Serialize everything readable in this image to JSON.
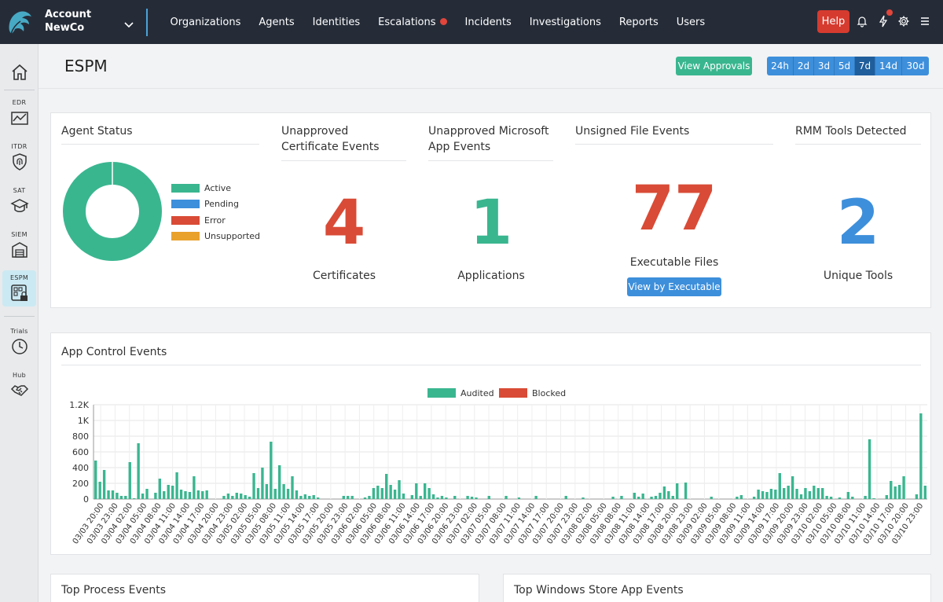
{
  "account": {
    "label": "Account",
    "name": "NewCo"
  },
  "nav": [
    {
      "label": "Organizations"
    },
    {
      "label": "Agents"
    },
    {
      "label": "Identities"
    },
    {
      "label": "Escalations",
      "alert": true
    },
    {
      "label": "Incidents"
    },
    {
      "label": "Investigations"
    },
    {
      "label": "Reports"
    },
    {
      "label": "Users"
    }
  ],
  "topbar": {
    "help_label": "Help",
    "icons": [
      "bell-icon",
      "bolt-icon",
      "gear-icon",
      "menu-icon"
    ]
  },
  "sidebar": [
    {
      "label": "",
      "icon": "home-icon"
    },
    {
      "label": "EDR",
      "icon": "chart-line-icon"
    },
    {
      "label": "ITDR",
      "icon": "fingerprint-shield-icon"
    },
    {
      "label": "SAT",
      "icon": "graduation-cap-icon"
    },
    {
      "label": "SIEM",
      "icon": "warehouse-icon"
    },
    {
      "label": "ESPM",
      "icon": "grid-lock-icon",
      "active": true
    },
    {
      "label": "Trials",
      "icon": "clock-icon"
    },
    {
      "label": "Hub",
      "icon": "handshake-icon"
    }
  ],
  "page": {
    "title": "ESPM",
    "approvals_label": "View Approvals",
    "ranges": [
      "24h",
      "2d",
      "3d",
      "5d",
      "7d",
      "14d",
      "30d"
    ],
    "active_range": "7d"
  },
  "agent_status": {
    "title": "Agent Status",
    "legend": [
      {
        "label": "Active",
        "color": "#3ab68f"
      },
      {
        "label": "Pending",
        "color": "#3d8fdb"
      },
      {
        "label": "Error",
        "color": "#d94b36"
      },
      {
        "label": "Unsupported",
        "color": "#e9a12c"
      }
    ],
    "chart_data": {
      "type": "pie",
      "categories": [
        "Active",
        "Pending",
        "Error",
        "Unsupported"
      ],
      "values": [
        100,
        0,
        0,
        0
      ]
    }
  },
  "stats": [
    {
      "title": "Unapproved Certificate Events",
      "value": "4",
      "label": "Certificates",
      "color": "#d94b36"
    },
    {
      "title": "Unapproved Microsoft App Events",
      "value": "1",
      "label": "Applications",
      "color": "#3ab68f"
    },
    {
      "title": "Unsigned File Events",
      "value": "77",
      "label": "Executable Files",
      "color": "#d94b36",
      "button": "View by Executable"
    },
    {
      "title": "RMM Tools Detected",
      "value": "2",
      "label": "Unique Tools",
      "color": "#3d8fdb"
    }
  ],
  "app_control": {
    "title": "App Control Events",
    "chart_data": {
      "type": "bar",
      "series": [
        {
          "name": "Audited",
          "color": "#3ab68f",
          "values": [
            490,
            220,
            370,
            110,
            110,
            80,
            40,
            40,
            470,
            10,
            710,
            70,
            130,
            0,
            80,
            260,
            100,
            180,
            170,
            340,
            120,
            100,
            90,
            290,
            110,
            100,
            110,
            0,
            0,
            0,
            40,
            70,
            40,
            80,
            70,
            50,
            30,
            330,
            140,
            400,
            190,
            730,
            130,
            430,
            190,
            130,
            290,
            110,
            40,
            60,
            40,
            50,
            20,
            0,
            0,
            0,
            0,
            0,
            40,
            40,
            40,
            0,
            0,
            20,
            40,
            140,
            170,
            140,
            320,
            180,
            120,
            240,
            70,
            0,
            50,
            200,
            40,
            200,
            140,
            60,
            20,
            40,
            20,
            0,
            40,
            0,
            0,
            40,
            30,
            20,
            0,
            0,
            40,
            0,
            0,
            0,
            40,
            0,
            0,
            20,
            0,
            0,
            0,
            40,
            0,
            0,
            0,
            0,
            0,
            0,
            40,
            0,
            0,
            0,
            20,
            0,
            0,
            0,
            0,
            0,
            0,
            30,
            0,
            40,
            0,
            0,
            80,
            30,
            70,
            0,
            30,
            40,
            80,
            160,
            100,
            40,
            200,
            0,
            210,
            0,
            0,
            0,
            0,
            0,
            30,
            0,
            0,
            0,
            0,
            0,
            30,
            50,
            0,
            0,
            30,
            120,
            100,
            90,
            130,
            120,
            330,
            140,
            170,
            290,
            130,
            60,
            140,
            100,
            170,
            140,
            140,
            40,
            30,
            0,
            20,
            0,
            90,
            30,
            0,
            0,
            40,
            760,
            10,
            0,
            0,
            50,
            230,
            160,
            180,
            290,
            0,
            0,
            60,
            1090,
            170
          ]
        },
        {
          "name": "Blocked",
          "color": "#d94b36",
          "values": []
        }
      ],
      "x_tick_labels": [
        "03/03 20:00",
        "03/03 23:00",
        "03/04 02:00",
        "03/04 05:00",
        "03/04 08:00",
        "03/04 11:00",
        "03/04 14:00",
        "03/04 17:00",
        "03/04 20:00",
        "03/04 23:00",
        "03/05 02:00",
        "03/05 05:00",
        "03/05 08:00",
        "03/05 11:00",
        "03/05 14:00",
        "03/05 17:00",
        "03/05 20:00",
        "03/05 23:00",
        "03/06 02:00",
        "03/06 05:00",
        "03/06 08:00",
        "03/06 11:00",
        "03/06 14:00",
        "03/06 17:00",
        "03/06 20:00",
        "03/06 23:00",
        "03/07 02:00",
        "03/07 05:00",
        "03/07 08:00",
        "03/07 11:00",
        "03/07 14:00",
        "03/07 17:00",
        "03/07 20:00",
        "03/07 23:00",
        "03/08 02:00",
        "03/08 05:00",
        "03/08 08:00",
        "03/08 11:00",
        "03/08 14:00",
        "03/08 17:00",
        "03/08 20:00",
        "03/08 23:00",
        "03/09 02:00",
        "03/09 05:00",
        "03/09 08:00",
        "03/09 11:00",
        "03/09 14:00",
        "03/09 17:00",
        "03/09 20:00",
        "03/09 23:00",
        "03/10 02:00",
        "03/10 05:00",
        "03/10 08:00",
        "03/10 11:00",
        "03/10 14:00",
        "03/10 17:00",
        "03/10 20:00",
        "03/10 23:00"
      ],
      "y_tick_labels": [
        "0",
        "200",
        "400",
        "600",
        "800",
        "1K",
        "1.2K"
      ],
      "ylim": [
        0,
        1200
      ],
      "grid": true,
      "legend": "top-center"
    }
  },
  "bottom_cards": [
    {
      "title": "Top Process Events"
    },
    {
      "title": "Top Windows Store App Events"
    }
  ]
}
